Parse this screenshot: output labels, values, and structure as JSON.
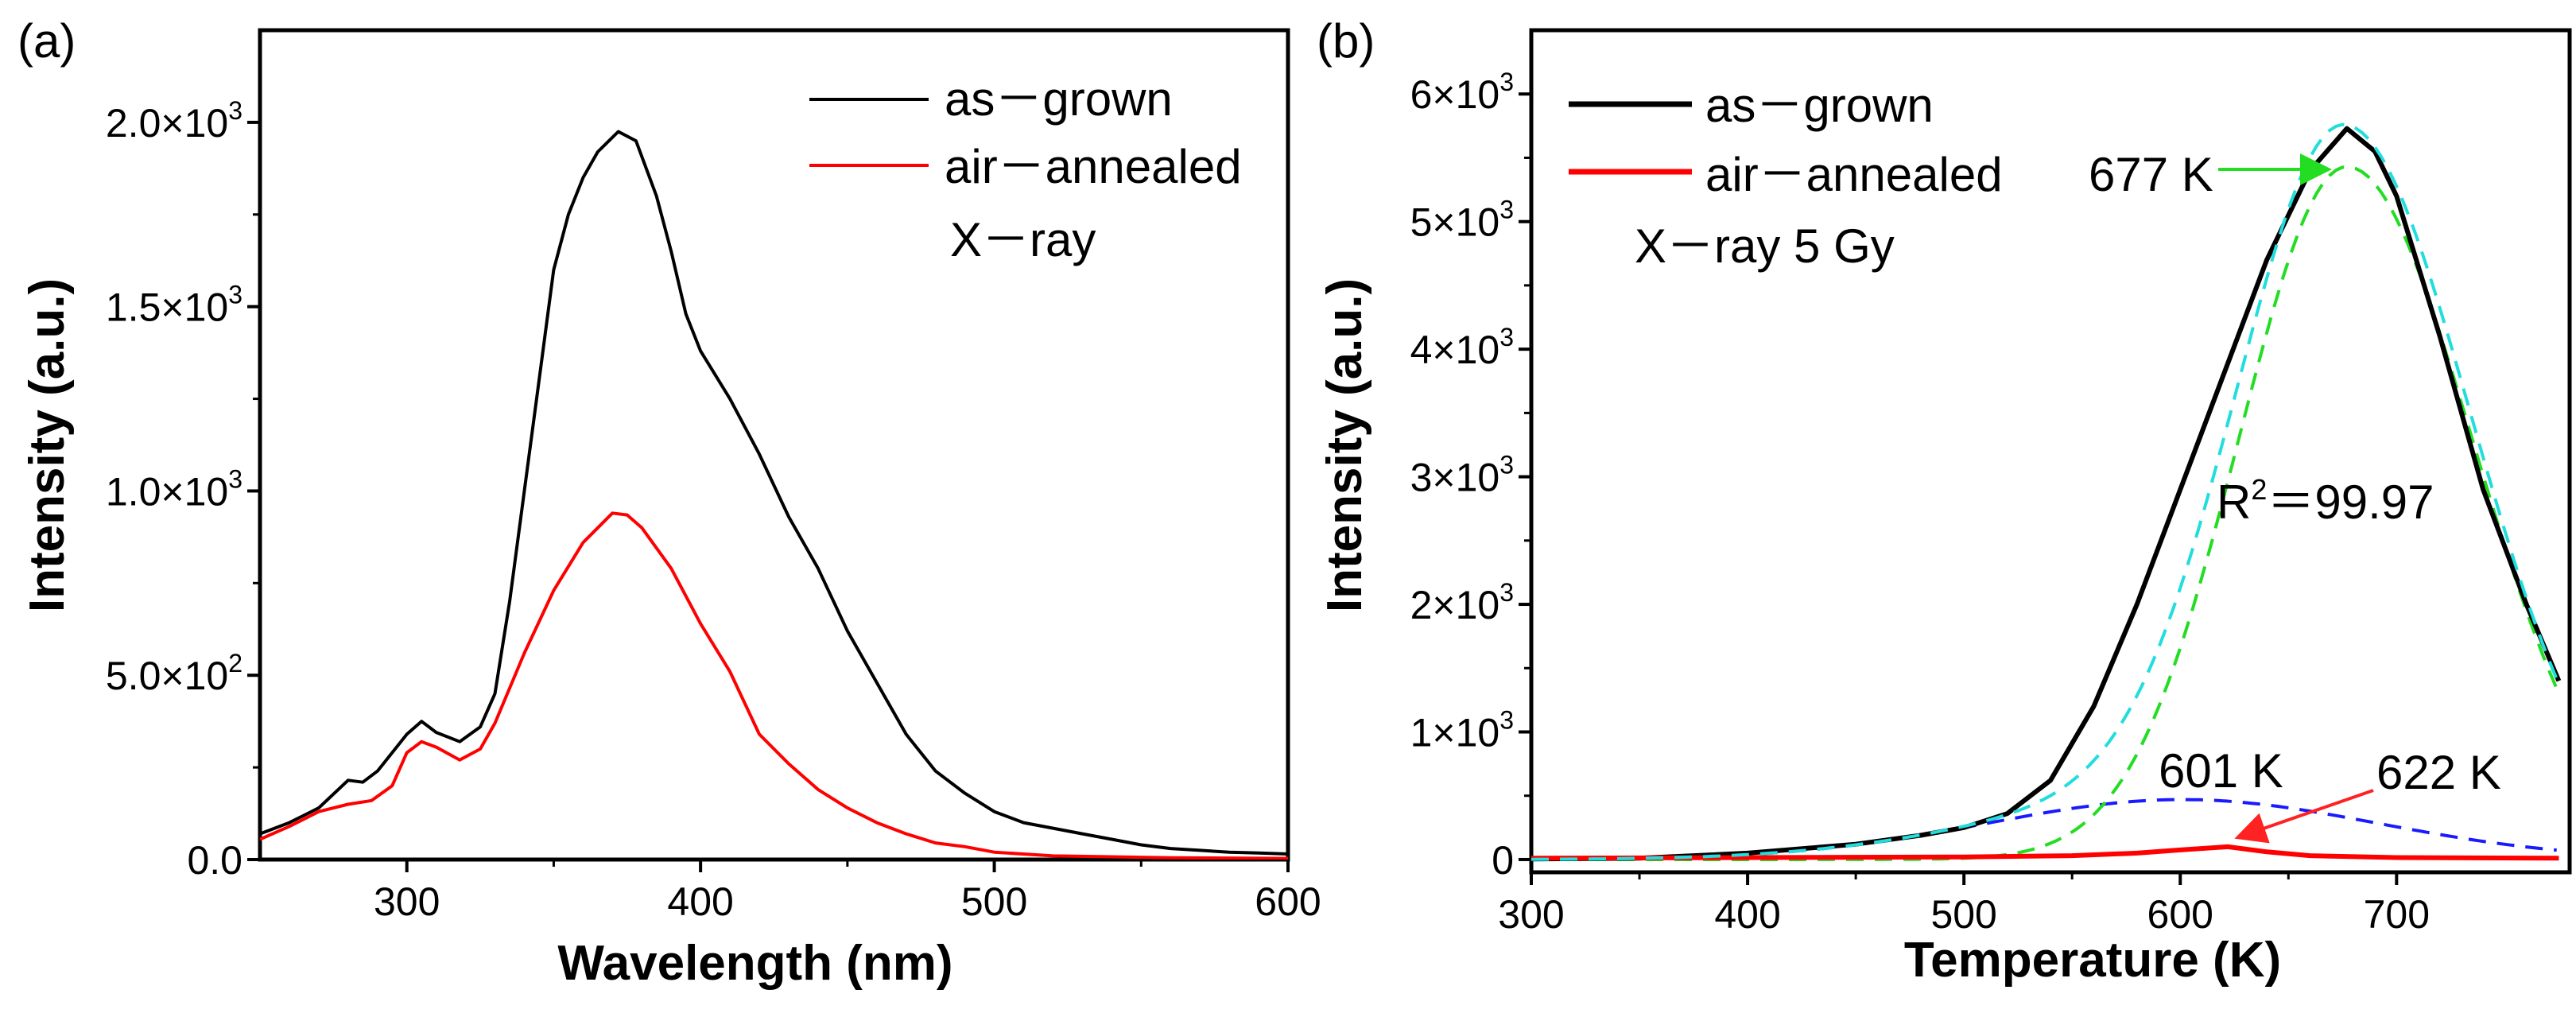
{
  "chart_data": [
    {
      "panel_label": "(a)",
      "type": "line",
      "xlabel": "Wavelength (nm)",
      "ylabel": "Intensity (a.u.)",
      "xlim": [
        250,
        600
      ],
      "ylim": [
        0,
        2250
      ],
      "xticks": [
        300,
        400,
        500,
        600
      ],
      "xtick_labels": [
        "300",
        "400",
        "500",
        "600"
      ],
      "yticks": [
        0,
        500,
        1000,
        1500,
        2000
      ],
      "ytick_labels": [
        "0.0",
        "5.0×10",
        "1.0×10",
        "1.5×10",
        "2.0×10"
      ],
      "ytick_exponents": [
        "",
        "2",
        "3",
        "3",
        "3"
      ],
      "legend_position": "top-right",
      "annotations": [
        "X－ray"
      ],
      "series": [
        {
          "name": "as－grown",
          "color": "#000000",
          "x": [
            250,
            260,
            270,
            280,
            285,
            290,
            300,
            305,
            310,
            318,
            325,
            330,
            335,
            340,
            345,
            350,
            355,
            360,
            365,
            372,
            378,
            385,
            390,
            395,
            400,
            410,
            420,
            430,
            440,
            450,
            460,
            470,
            480,
            490,
            500,
            510,
            520,
            530,
            540,
            550,
            560,
            570,
            580,
            590,
            600
          ],
          "y": [
            70,
            100,
            140,
            215,
            210,
            240,
            340,
            375,
            345,
            320,
            360,
            450,
            700,
            1000,
            1300,
            1600,
            1750,
            1850,
            1920,
            1975,
            1950,
            1800,
            1650,
            1480,
            1380,
            1250,
            1100,
            930,
            790,
            620,
            480,
            340,
            240,
            180,
            130,
            100,
            85,
            70,
            55,
            40,
            30,
            25,
            20,
            18,
            15
          ]
        },
        {
          "name": "air－annealed",
          "color": "#ff0000",
          "x": [
            250,
            260,
            270,
            280,
            288,
            295,
            300,
            305,
            310,
            318,
            325,
            330,
            340,
            350,
            360,
            370,
            375,
            380,
            390,
            400,
            410,
            420,
            430,
            440,
            450,
            460,
            470,
            480,
            490,
            500,
            520,
            560,
            600
          ],
          "y": [
            55,
            90,
            130,
            150,
            160,
            200,
            290,
            320,
            305,
            270,
            300,
            370,
            560,
            730,
            860,
            940,
            935,
            900,
            790,
            640,
            510,
            340,
            260,
            190,
            140,
            100,
            70,
            45,
            35,
            20,
            10,
            5,
            3
          ]
        }
      ]
    },
    {
      "panel_label": "(b)",
      "type": "line",
      "xlabel": "Temperature (K)",
      "ylabel": "Intensity (a.u.)",
      "xlim": [
        300,
        780
      ],
      "ylim": [
        -100,
        6500
      ],
      "xticks": [
        300,
        400,
        500,
        600,
        700
      ],
      "xtick_labels": [
        "300",
        "400",
        "500",
        "600",
        "700"
      ],
      "yticks": [
        0,
        1000,
        2000,
        3000,
        4000,
        5000,
        6000
      ],
      "ytick_labels": [
        "0",
        "1×10",
        "2×10",
        "3×10",
        "4×10",
        "5×10",
        "6×10"
      ],
      "ytick_exponents": [
        "",
        "3",
        "3",
        "3",
        "3",
        "3",
        "3"
      ],
      "legend_position": "top-left",
      "annotations": {
        "dose": "X－ray 5 Gy",
        "peak_main": "677 K",
        "peak_sub": "601 K",
        "peak_annealed": "622 K",
        "fit_r2_prefix": "R",
        "fit_r2_sup": "2",
        "fit_r2_value": "＝99.97"
      },
      "series": [
        {
          "name": "as－grown",
          "color": "#000000",
          "x": [
            300,
            350,
            400,
            450,
            480,
            500,
            520,
            540,
            560,
            580,
            600,
            620,
            640,
            660,
            677,
            690,
            700,
            720,
            740,
            760,
            775
          ],
          "y": [
            5,
            10,
            50,
            120,
            190,
            250,
            360,
            620,
            1200,
            2000,
            2900,
            3800,
            4700,
            5400,
            5730,
            5550,
            5200,
            4100,
            2900,
            2000,
            1400
          ]
        },
        {
          "name": "air－annealed",
          "color": "#ff0000",
          "x": [
            300,
            400,
            500,
            550,
            580,
            600,
            622,
            640,
            660,
            700,
            775
          ],
          "y": [
            10,
            15,
            20,
            30,
            50,
            75,
            100,
            60,
            30,
            15,
            10
          ]
        }
      ],
      "fits": [
        {
          "name": "peak 677 K",
          "color": "#22dd22",
          "center": 677,
          "amplitude": 5430,
          "sigma_left": 50,
          "sigma_right": 58
        },
        {
          "name": "peak 601 K",
          "color": "#1a1aff",
          "center": 601,
          "amplitude": 470,
          "sigma_left": 90,
          "sigma_right": 90
        },
        {
          "name": "cumulative fit",
          "color": "#22dddd"
        }
      ]
    }
  ]
}
